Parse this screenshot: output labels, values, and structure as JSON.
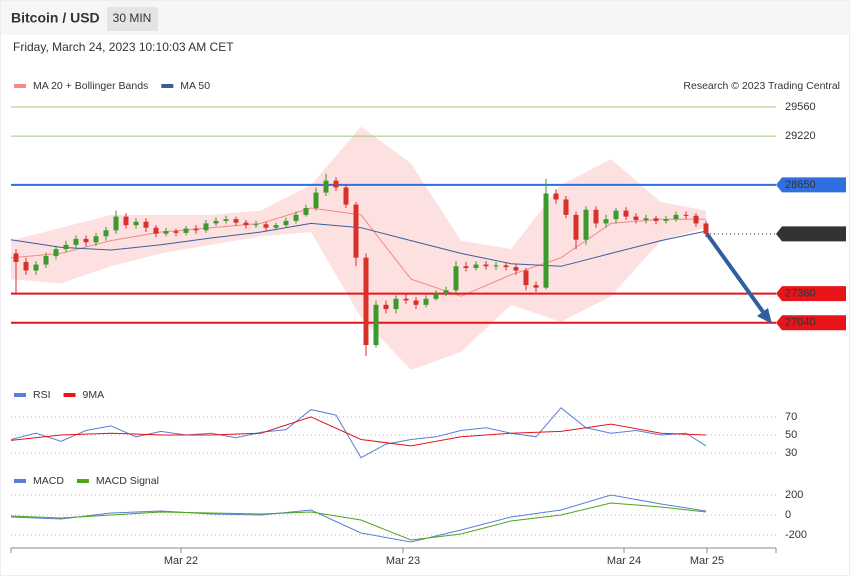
{
  "header": {
    "title": "Bitcoin / USD",
    "interval": "30 MIN",
    "date": "Friday, March 24, 2023 10:10:03 AM CET",
    "credit": "Research © 2023 Trading Central"
  },
  "chart_data": [
    {
      "type": "candlestick",
      "xlim": [
        0,
        76.5
      ],
      "ylim": [
        26430,
        29700
      ],
      "up_color": "#3c9a2c",
      "down_color": "#d9302c",
      "x": [
        0.5,
        1.5,
        2.5,
        3.5,
        4.5,
        5.5,
        6.5,
        7.5,
        8.5,
        9.5,
        10.5,
        11.5,
        12.5,
        13.5,
        14.5,
        15.5,
        16.5,
        17.5,
        18.5,
        19.5,
        20.5,
        21.5,
        22.5,
        23.5,
        24.5,
        25.5,
        26.5,
        27.5,
        28.5,
        29.5,
        30.5,
        31.5,
        32.5,
        33.5,
        34.5,
        35.5,
        36.5,
        37.5,
        38.5,
        39.5,
        40.5,
        41.5,
        42.5,
        43.5,
        44.5,
        45.5,
        46.5,
        47.5,
        48.5,
        49.5,
        50.5,
        51.5,
        52.5,
        53.5,
        54.5,
        55.5,
        56.5,
        57.5,
        58.5,
        59.5,
        60.5,
        61.5,
        62.5,
        63.5,
        64.5,
        65.5,
        66.5,
        67.5,
        68.5,
        69.5
      ],
      "open": [
        27850,
        27750,
        27650,
        27720,
        27820,
        27900,
        27950,
        28020,
        27980,
        28050,
        28120,
        28280,
        28180,
        28220,
        28150,
        28080,
        28110,
        28090,
        28140,
        28120,
        28200,
        28230,
        28250,
        28210,
        28180,
        28190,
        28150,
        28180,
        28230,
        28300,
        28380,
        28560,
        28700,
        28620,
        28420,
        27800,
        26780,
        27250,
        27200,
        27320,
        27300,
        27250,
        27320,
        27380,
        27420,
        27700,
        27680,
        27720,
        27700,
        27710,
        27690,
        27650,
        27480,
        27450,
        28550,
        28480,
        28300,
        28010,
        28360,
        28200,
        28250,
        28350,
        28280,
        28240,
        28260,
        28230,
        28250,
        28300,
        28290,
        28200
      ],
      "high": [
        27900,
        27800,
        27760,
        27860,
        27940,
        28000,
        28060,
        28060,
        28090,
        28160,
        28350,
        28320,
        28260,
        28260,
        28180,
        28150,
        28140,
        28170,
        28180,
        28240,
        28270,
        28290,
        28280,
        28240,
        28230,
        28220,
        28210,
        28270,
        28340,
        28420,
        28620,
        28780,
        28740,
        28660,
        28450,
        27850,
        27300,
        27300,
        27360,
        27370,
        27340,
        27360,
        27420,
        27460,
        27760,
        27750,
        27760,
        27760,
        27750,
        27740,
        27720,
        27680,
        27520,
        28720,
        28600,
        28520,
        28340,
        28400,
        28400,
        28300,
        28380,
        28390,
        28320,
        28300,
        28290,
        28290,
        28340,
        28340,
        28320,
        28230
      ],
      "low": [
        27380,
        27600,
        27600,
        27680,
        27780,
        27870,
        27900,
        27930,
        27940,
        28000,
        28080,
        28140,
        28140,
        28100,
        28040,
        28050,
        28050,
        28060,
        28080,
        28090,
        28170,
        28200,
        28170,
        28140,
        28150,
        28110,
        28120,
        28150,
        28200,
        28280,
        28350,
        28520,
        28580,
        28380,
        27700,
        26650,
        26750,
        27150,
        27150,
        27260,
        27200,
        27220,
        27300,
        27350,
        27380,
        27640,
        27650,
        27660,
        27660,
        27650,
        27600,
        27420,
        27400,
        27430,
        28430,
        28260,
        27900,
        27950,
        28150,
        28150,
        28200,
        28240,
        28200,
        28200,
        28190,
        28200,
        28220,
        28250,
        28160,
        28040
      ],
      "close": [
        27750,
        27650,
        27720,
        27820,
        27900,
        27950,
        28020,
        27980,
        28050,
        28120,
        28280,
        28180,
        28220,
        28150,
        28080,
        28110,
        28090,
        28140,
        28120,
        28200,
        28230,
        28250,
        28210,
        28180,
        28190,
        28150,
        28180,
        28230,
        28300,
        28380,
        28560,
        28700,
        28620,
        28420,
        27800,
        26780,
        27250,
        27200,
        27320,
        27300,
        27250,
        27320,
        27380,
        27420,
        27700,
        27680,
        27720,
        27700,
        27710,
        27690,
        27650,
        27480,
        27450,
        28550,
        28480,
        28300,
        28010,
        28360,
        28200,
        28250,
        28350,
        28280,
        28240,
        28260,
        28230,
        28250,
        28300,
        28290,
        28200,
        28078
      ],
      "series": [
        {
          "name": "MA 20 + Bollinger Bands",
          "color": "#f28a8a",
          "band_color": "#fde0e0",
          "x": [
            0,
            5,
            10,
            15,
            20,
            25,
            30,
            35,
            40,
            45,
            50,
            55,
            60,
            65,
            69.5
          ],
          "values": [
            27800,
            27850,
            28000,
            28100,
            28150,
            28200,
            28380,
            28300,
            27550,
            27350,
            27600,
            27800,
            28200,
            28250,
            28250
          ],
          "upper": [
            28000,
            28150,
            28300,
            28300,
            28300,
            28350,
            28650,
            29330,
            28900,
            28000,
            27900,
            28650,
            28950,
            28450,
            28350
          ],
          "lower": [
            27550,
            27500,
            27700,
            27850,
            27950,
            28050,
            28100,
            27100,
            26490,
            26700,
            27250,
            27050,
            27350,
            28000,
            28150
          ]
        },
        {
          "name": "MA 50",
          "color": "#3a5f9e",
          "x": [
            0,
            5,
            10,
            15,
            20,
            25,
            30,
            35,
            40,
            45,
            50,
            55,
            60,
            65,
            69.5
          ],
          "values": [
            28010,
            27920,
            27890,
            27950,
            28030,
            28100,
            28200,
            28150,
            28000,
            27850,
            27730,
            27700,
            27850,
            28000,
            28110
          ]
        }
      ],
      "levels": [
        {
          "value": 29560,
          "color": "#7cb342",
          "line": "solid",
          "tag": false
        },
        {
          "value": 29220,
          "color": "#7cb342",
          "line": "solid",
          "tag": false
        },
        {
          "value": 28650,
          "color": "#2f6fe0",
          "line": "solid",
          "tag": true
        },
        {
          "value": 28078,
          "color": "#333333",
          "line": "dotted",
          "tag": true
        },
        {
          "value": 27380,
          "color": "#e8141a",
          "line": "solid",
          "tag": true
        },
        {
          "value": 27040,
          "color": "#e8141a",
          "line": "solid",
          "tag": true
        }
      ]
    },
    {
      "type": "line",
      "xlim": [
        0,
        76.5
      ],
      "ylim": [
        18,
        82
      ],
      "yticks": [
        70,
        50,
        30
      ],
      "series": [
        {
          "name": "RSI",
          "color": "#5b7fd6",
          "x": [
            0,
            2.5,
            5,
            7.5,
            10,
            12.5,
            15,
            17.5,
            20,
            22.5,
            25,
            27.5,
            30,
            32.5,
            35,
            37.5,
            40,
            42.5,
            45,
            47.5,
            50,
            52.5,
            55,
            57.5,
            60,
            62.5,
            65,
            67.5,
            69.5
          ],
          "values": [
            45,
            52,
            43,
            55,
            60,
            48,
            54,
            50,
            52,
            47,
            53,
            56,
            78,
            72,
            25,
            40,
            45,
            48,
            55,
            58,
            52,
            48,
            80,
            58,
            52,
            55,
            50,
            52,
            38
          ]
        },
        {
          "name": "9MA",
          "color": "#e8141a",
          "x": [
            0,
            5,
            10,
            15,
            20,
            25,
            30,
            35,
            40,
            45,
            50,
            55,
            60,
            65,
            69.5
          ],
          "values": [
            44,
            50,
            52,
            50,
            50,
            52,
            70,
            45,
            38,
            48,
            52,
            54,
            62,
            52,
            50
          ]
        }
      ]
    },
    {
      "type": "line",
      "xlim": [
        0,
        76.5
      ],
      "ylim": [
        -300,
        300
      ],
      "yticks": [
        200,
        0,
        -200
      ],
      "xticks": [
        {
          "value": 17,
          "label": "Mar 22"
        },
        {
          "value": 39.2,
          "label": "Mar 23"
        },
        {
          "value": 61.3,
          "label": "Mar 24"
        },
        {
          "value": 69.6,
          "label": "Mar 25"
        }
      ],
      "series": [
        {
          "name": "MACD",
          "color": "#5b7fd6",
          "x": [
            0,
            5,
            10,
            15,
            20,
            25,
            30,
            35,
            40,
            45,
            50,
            55,
            60,
            65,
            69.5
          ],
          "values": [
            -20,
            -40,
            20,
            40,
            10,
            0,
            50,
            -180,
            -270,
            -150,
            -20,
            50,
            200,
            110,
            40
          ]
        },
        {
          "name": "MACD Signal",
          "color": "#4fa31a",
          "x": [
            0,
            5,
            10,
            15,
            20,
            25,
            30,
            35,
            40,
            45,
            50,
            55,
            60,
            65,
            69.5
          ],
          "values": [
            -10,
            -30,
            0,
            30,
            20,
            10,
            30,
            -50,
            -250,
            -190,
            -60,
            0,
            120,
            80,
            30
          ]
        }
      ]
    }
  ]
}
